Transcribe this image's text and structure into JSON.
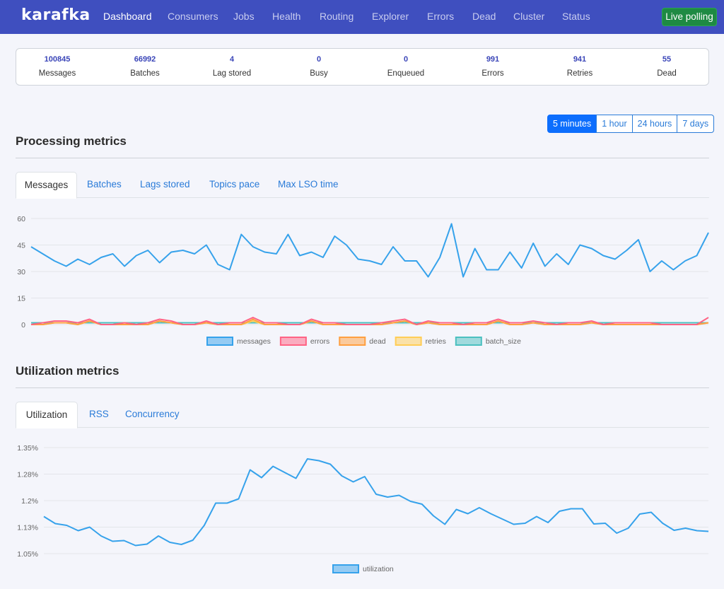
{
  "nav": {
    "brand": "karafka",
    "items": [
      "Dashboard",
      "Consumers",
      "Jobs",
      "Health",
      "Routing",
      "Explorer",
      "Errors",
      "Dead",
      "Cluster",
      "Status"
    ],
    "active": "Dashboard",
    "live_button": "Live polling"
  },
  "stats": [
    {
      "value": "100845",
      "label": "Messages"
    },
    {
      "value": "66992",
      "label": "Batches"
    },
    {
      "value": "4",
      "label": "Lag stored"
    },
    {
      "value": "0",
      "label": "Busy"
    },
    {
      "value": "0",
      "label": "Enqueued"
    },
    {
      "value": "991",
      "label": "Errors"
    },
    {
      "value": "941",
      "label": "Retries"
    },
    {
      "value": "55",
      "label": "Dead"
    }
  ],
  "time_ranges": [
    "5 minutes",
    "1 hour",
    "24 hours",
    "7 days"
  ],
  "active_range": "5 minutes",
  "processing": {
    "title": "Processing metrics",
    "tabs": [
      "Messages",
      "Batches",
      "Lags stored",
      "Topics pace",
      "Max LSO time"
    ],
    "active_tab": "Messages"
  },
  "utilization": {
    "title": "Utilization metrics",
    "tabs": [
      "Utilization",
      "RSS",
      "Concurrency"
    ],
    "active_tab": "Utilization"
  },
  "colors": {
    "messages": "#36a2eb",
    "errors": "#ff6384",
    "dead": "#ff9f40",
    "retries": "#ffcd56",
    "batch_size": "#4bc0c0",
    "utilization": "#36a2eb"
  },
  "chart_data": [
    {
      "type": "line",
      "ylim": [
        0,
        60
      ],
      "yticks": [
        "0",
        "15",
        "30",
        "45",
        "60"
      ],
      "legend_position": "bottom",
      "series": [
        {
          "name": "messages",
          "values": [
            44,
            40,
            36,
            33,
            37,
            34,
            38,
            40,
            33,
            39,
            42,
            35,
            41,
            42,
            40,
            45,
            34,
            31,
            51,
            44,
            41,
            40,
            51,
            39,
            41,
            38,
            50,
            45,
            37,
            36,
            34,
            44,
            36,
            36,
            27,
            38,
            57,
            27,
            43,
            31,
            31,
            41,
            32,
            46,
            33,
            40,
            34,
            45,
            43,
            39,
            37,
            42,
            48,
            30,
            36,
            31,
            36,
            39,
            52
          ]
        },
        {
          "name": "errors",
          "values": [
            0,
            1,
            2,
            2,
            1,
            3,
            0,
            0,
            1,
            0,
            1,
            3,
            2,
            0,
            0,
            2,
            0,
            1,
            1,
            4,
            1,
            1,
            0,
            0,
            3,
            1,
            1,
            0,
            0,
            0,
            1,
            2,
            3,
            0,
            2,
            1,
            1,
            0,
            1,
            1,
            3,
            1,
            1,
            2,
            1,
            0,
            1,
            1,
            2,
            0,
            1,
            1,
            1,
            1,
            0,
            0,
            0,
            0,
            4
          ]
        },
        {
          "name": "dead",
          "values": [
            0,
            0,
            1,
            1,
            0,
            2,
            0,
            0,
            0,
            0,
            0,
            2,
            1,
            0,
            0,
            1,
            0,
            0,
            0,
            3,
            0,
            0,
            0,
            0,
            2,
            0,
            0,
            0,
            0,
            0,
            0,
            1,
            2,
            0,
            1,
            0,
            0,
            0,
            0,
            0,
            2,
            0,
            0,
            1,
            0,
            0,
            0,
            0,
            1,
            0,
            0,
            0,
            0,
            0,
            0,
            0,
            0,
            0,
            1
          ]
        },
        {
          "name": "retries",
          "values": [
            0,
            0,
            1,
            1,
            0,
            2,
            0,
            0,
            1,
            0,
            0,
            2,
            1,
            0,
            0,
            1,
            0,
            0,
            0,
            2,
            0,
            0,
            0,
            0,
            2,
            0,
            0,
            0,
            0,
            0,
            0,
            1,
            2,
            0,
            1,
            0,
            0,
            0,
            0,
            0,
            2,
            0,
            0,
            1,
            0,
            0,
            0,
            0,
            1,
            0,
            0,
            0,
            0,
            0,
            0,
            0,
            0,
            0,
            1
          ]
        },
        {
          "name": "batch_size",
          "values": [
            1,
            1,
            1,
            1,
            1,
            1,
            1,
            1,
            1,
            1,
            1,
            1,
            1,
            1,
            1,
            1,
            1,
            1,
            1,
            1,
            1,
            1,
            1,
            1,
            1,
            1,
            1,
            1,
            1,
            1,
            1,
            1,
            1,
            1,
            1,
            1,
            1,
            1,
            1,
            1,
            1,
            1,
            1,
            1,
            1,
            1,
            1,
            1,
            1,
            1,
            1,
            1,
            1,
            1,
            1,
            1,
            1,
            1,
            1
          ]
        }
      ]
    },
    {
      "type": "line",
      "ylim": [
        1.05,
        1.35
      ],
      "yticks": [
        "1.05%",
        "1.13%",
        "1.2%",
        "1.28%",
        "1.35%"
      ],
      "legend_position": "bottom",
      "series": [
        {
          "name": "utilization",
          "values": [
            1.155,
            1.135,
            1.13,
            1.115,
            1.125,
            1.1,
            1.085,
            1.087,
            1.073,
            1.077,
            1.1,
            1.082,
            1.076,
            1.088,
            1.13,
            1.193,
            1.193,
            1.205,
            1.287,
            1.265,
            1.297,
            1.28,
            1.263,
            1.318,
            1.313,
            1.303,
            1.27,
            1.253,
            1.268,
            1.218,
            1.21,
            1.215,
            1.198,
            1.19,
            1.157,
            1.133,
            1.175,
            1.163,
            1.18,
            1.163,
            1.148,
            1.133,
            1.136,
            1.155,
            1.138,
            1.17,
            1.177,
            1.177,
            1.134,
            1.136,
            1.108,
            1.122,
            1.162,
            1.167,
            1.136,
            1.116,
            1.122,
            1.115,
            1.113
          ]
        }
      ]
    }
  ]
}
